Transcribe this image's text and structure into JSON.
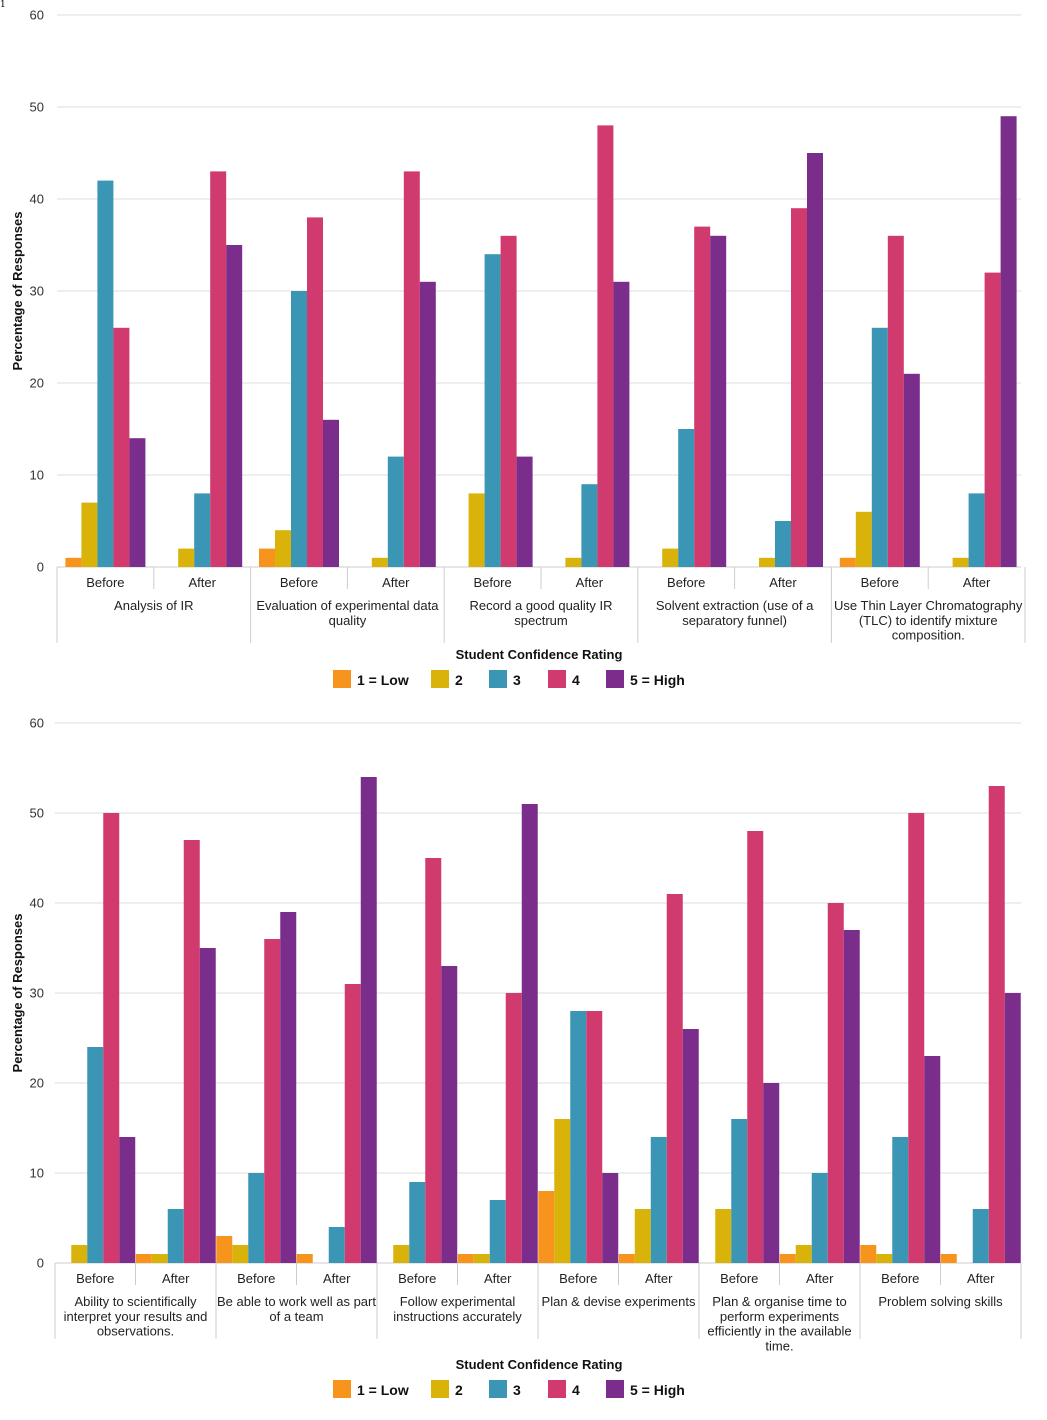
{
  "figure_mark": "1",
  "colors": {
    "1 = Low": "#f7941d",
    "2": "#d9b30a",
    "3": "#3a96b4",
    "4": "#d03a6e",
    "5 = High": "#7b2d8b",
    "grid": "#dddddd",
    "axis": "#cccccc"
  },
  "chart_data": [
    {
      "type": "bar",
      "xlabel": "Student Confidence Rating",
      "ylabel": "Percentage of Responses",
      "ylim": [
        0,
        60
      ],
      "yticks": [
        "0",
        "10",
        "20",
        "30",
        "40",
        "50",
        "60"
      ],
      "grid": true,
      "legend_position": "bottom",
      "series_names": [
        "1 = Low",
        "2",
        "3",
        "4",
        "5 = High"
      ],
      "groups": [
        {
          "label": "Analysis of IR",
          "label_lines": [
            "Analysis of IR"
          ],
          "subgroups": [
            {
              "label": "Before",
              "values": [
                1,
                7,
                42,
                26,
                14
              ]
            },
            {
              "label": "After",
              "values": [
                0,
                2,
                8,
                43,
                35
              ]
            }
          ]
        },
        {
          "label": "Evaluation of experimental data quality",
          "label_lines": [
            "Evaluation of experimental data",
            "quality"
          ],
          "subgroups": [
            {
              "label": "Before",
              "values": [
                2,
                4,
                30,
                38,
                16
              ]
            },
            {
              "label": "After",
              "values": [
                0,
                1,
                12,
                43,
                31
              ]
            }
          ]
        },
        {
          "label": "Record a good quality IR spectrum",
          "label_lines": [
            "Record a good quality IR",
            "spectrum"
          ],
          "subgroups": [
            {
              "label": "Before",
              "values": [
                0,
                8,
                34,
                36,
                12
              ]
            },
            {
              "label": "After",
              "values": [
                0,
                1,
                9,
                48,
                31
              ]
            }
          ]
        },
        {
          "label": "Solvent extraction (use of a separatory funnel)",
          "label_lines": [
            "Solvent extraction (use of a",
            "separatory funnel)"
          ],
          "subgroups": [
            {
              "label": "Before",
              "values": [
                0,
                2,
                15,
                37,
                36
              ]
            },
            {
              "label": "After",
              "values": [
                0,
                1,
                5,
                39,
                45
              ]
            }
          ]
        },
        {
          "label": "Use Thin Layer Chromatography (TLC) to identify mixture composition.",
          "label_lines": [
            "Use Thin Layer Chromatography",
            "(TLC) to identify mixture",
            "composition."
          ],
          "subgroups": [
            {
              "label": "Before",
              "values": [
                1,
                6,
                26,
                36,
                21
              ]
            },
            {
              "label": "After",
              "values": [
                0,
                1,
                8,
                32,
                49
              ]
            }
          ]
        }
      ]
    },
    {
      "type": "bar",
      "xlabel": "Student Confidence Rating",
      "ylabel": "Percentage of Responses",
      "ylim": [
        0,
        60
      ],
      "yticks": [
        "0",
        "10",
        "20",
        "30",
        "40",
        "50",
        "60"
      ],
      "grid": true,
      "legend_position": "bottom",
      "series_names": [
        "1 = Low",
        "2",
        "3",
        "4",
        "5 = High"
      ],
      "groups": [
        {
          "label": "Ability to scientifically interpret your results and observations.",
          "label_lines": [
            "Ability to scientifically",
            "interpret your results and",
            "observations."
          ],
          "subgroups": [
            {
              "label": "Before",
              "values": [
                0,
                2,
                24,
                50,
                14
              ]
            },
            {
              "label": "After",
              "values": [
                1,
                1,
                6,
                47,
                35
              ]
            }
          ]
        },
        {
          "label": "Be able to work well as part of a team",
          "label_lines": [
            "Be able to work well as part",
            "of a team"
          ],
          "subgroups": [
            {
              "label": "Before",
              "values": [
                3,
                2,
                10,
                36,
                39
              ]
            },
            {
              "label": "After",
              "values": [
                1,
                0,
                4,
                31,
                54
              ]
            }
          ]
        },
        {
          "label": "Follow experimental instructions accurately",
          "label_lines": [
            "Follow experimental",
            "instructions accurately"
          ],
          "subgroups": [
            {
              "label": "Before",
              "values": [
                0,
                2,
                9,
                45,
                33
              ]
            },
            {
              "label": "After",
              "values": [
                1,
                1,
                7,
                30,
                51
              ]
            }
          ]
        },
        {
          "label": "Plan & devise experiments",
          "label_lines": [
            "Plan & devise experiments"
          ],
          "subgroups": [
            {
              "label": "Before",
              "values": [
                8,
                16,
                28,
                28,
                10
              ]
            },
            {
              "label": "After",
              "values": [
                1,
                6,
                14,
                41,
                26
              ]
            }
          ]
        },
        {
          "label": "Plan & organise time to perform experiments efficiently in the available time.",
          "label_lines": [
            "Plan & organise time to",
            "perform experiments",
            "efficiently in the available",
            "time."
          ],
          "subgroups": [
            {
              "label": "Before",
              "values": [
                0,
                6,
                16,
                48,
                20
              ]
            },
            {
              "label": "After",
              "values": [
                1,
                2,
                10,
                40,
                37
              ]
            }
          ]
        },
        {
          "label": "Problem solving skills",
          "label_lines": [
            "Problem solving skills"
          ],
          "subgroups": [
            {
              "label": "Before",
              "values": [
                2,
                1,
                14,
                50,
                23
              ]
            },
            {
              "label": "After",
              "values": [
                1,
                0,
                6,
                53,
                30
              ]
            }
          ]
        }
      ]
    }
  ]
}
